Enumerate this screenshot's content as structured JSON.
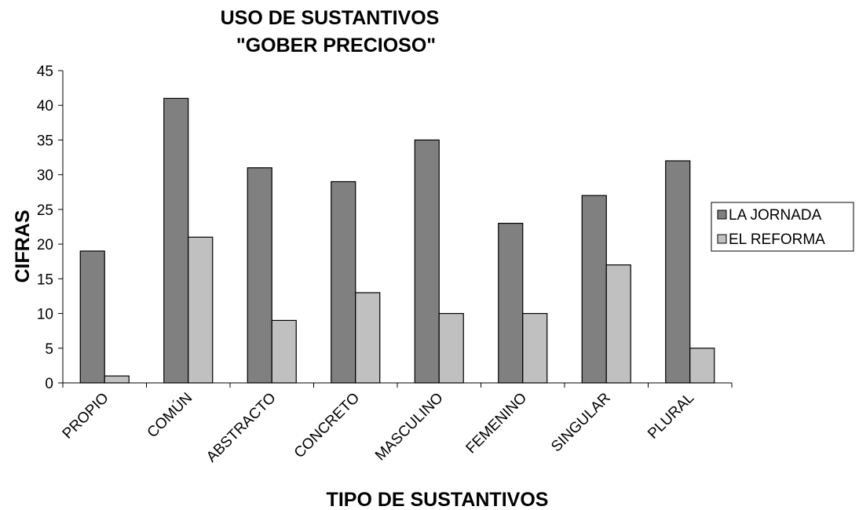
{
  "chart_data": {
    "type": "bar",
    "title": [
      "USO DE SUSTANTIVOS",
      "\"GOBER PRECIOSO\""
    ],
    "x_label": "TIPO DE SUSTANTIVOS",
    "y_label": "CIFRAS",
    "categories": [
      "PROPIO",
      "COMÚN",
      "ABSTRACTO",
      "CONCRETO",
      "MASCULINO",
      "FEMENINO",
      "SINGULAR",
      "PLURAL"
    ],
    "series": [
      {
        "name": "LA JORNADA",
        "color": "#808080",
        "values": [
          19,
          41,
          31,
          29,
          35,
          23,
          27,
          32
        ]
      },
      {
        "name": "EL REFORMA",
        "color": "#c0c0c0",
        "values": [
          1,
          21,
          9,
          13,
          10,
          10,
          17,
          5
        ]
      }
    ],
    "ylim": [
      0,
      45
    ],
    "yticks": [
      0,
      5,
      10,
      15,
      20,
      25,
      30,
      35,
      40,
      45
    ],
    "grid": false,
    "legend": "right"
  }
}
